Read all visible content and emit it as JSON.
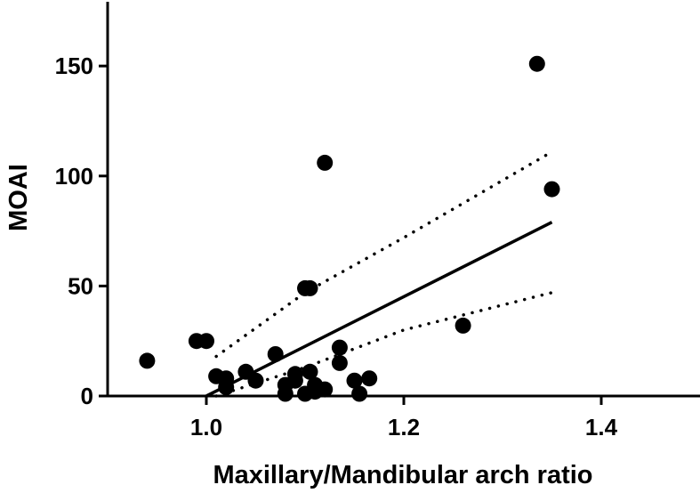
{
  "chart_data": {
    "type": "scatter",
    "title": "",
    "xlabel": "Maxillary/Mandibular arch ratio",
    "ylabel": "MOAI",
    "xlim": [
      0.9,
      1.5
    ],
    "ylim": [
      0,
      180
    ],
    "x_ticks": [
      "1.0",
      "1.2",
      "1.4"
    ],
    "y_ticks": [
      "0",
      "50",
      "100",
      "150"
    ],
    "x_tick_values": [
      1.0,
      1.2,
      1.4
    ],
    "y_tick_values": [
      0,
      50,
      100,
      150
    ],
    "grid": false,
    "series": [
      {
        "points": [
          [
            0.94,
            16
          ],
          [
            0.99,
            25
          ],
          [
            1.0,
            25
          ],
          [
            1.01,
            9
          ],
          [
            1.02,
            8
          ],
          [
            1.02,
            4
          ],
          [
            1.04,
            11
          ],
          [
            1.05,
            7
          ],
          [
            1.07,
            19
          ],
          [
            1.08,
            1
          ],
          [
            1.08,
            5
          ],
          [
            1.09,
            7
          ],
          [
            1.09,
            10
          ],
          [
            1.1,
            49
          ],
          [
            1.105,
            49
          ],
          [
            1.1,
            1
          ],
          [
            1.105,
            11
          ],
          [
            1.11,
            5
          ],
          [
            1.11,
            2
          ],
          [
            1.12,
            3
          ],
          [
            1.12,
            106
          ],
          [
            1.135,
            22
          ],
          [
            1.135,
            15
          ],
          [
            1.15,
            7
          ],
          [
            1.155,
            1
          ],
          [
            1.165,
            8
          ],
          [
            1.26,
            32
          ],
          [
            1.335,
            151
          ],
          [
            1.35,
            94
          ]
        ]
      }
    ],
    "regression_line": [
      [
        1.0,
        0
      ],
      [
        1.35,
        79
      ]
    ],
    "confidence_band_upper": [
      [
        1.01,
        18
      ],
      [
        1.1,
        47
      ],
      [
        1.2,
        72
      ],
      [
        1.35,
        111
      ]
    ],
    "confidence_band_lower": [
      [
        1.01,
        0
      ],
      [
        1.1,
        13
      ],
      [
        1.2,
        30
      ],
      [
        1.35,
        47
      ]
    ],
    "colors": {
      "marks": "#000000",
      "background": "#ffffff"
    }
  }
}
